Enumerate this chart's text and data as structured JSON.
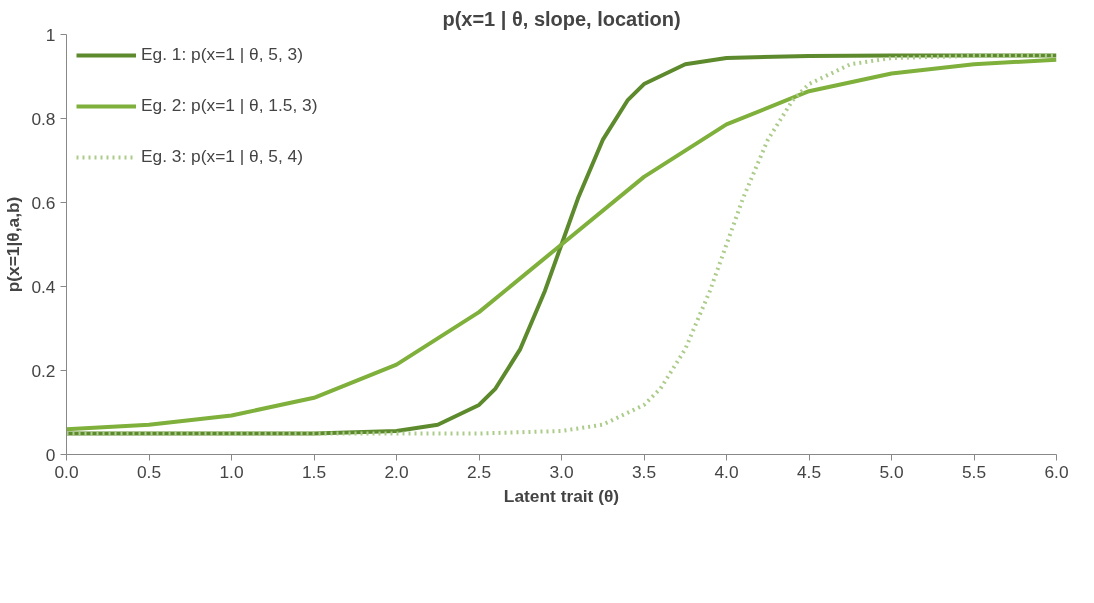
{
  "chart_data": {
    "type": "line",
    "title": "p(x=1 | θ, slope, location)",
    "xlabel": "Latent trait (θ)",
    "ylabel": "p(x=1|θ,a,b)",
    "xlim": [
      0,
      6
    ],
    "ylim": [
      0,
      1
    ],
    "xticks": [
      {
        "value": 0,
        "label": "0.0"
      },
      {
        "value": 0.5,
        "label": "0.5"
      },
      {
        "value": 1,
        "label": "1.0"
      },
      {
        "value": 1.5,
        "label": "1.5"
      },
      {
        "value": 2,
        "label": "2.0"
      },
      {
        "value": 2.5,
        "label": "2.5"
      },
      {
        "value": 3,
        "label": "3.0"
      },
      {
        "value": 3.5,
        "label": "3.5"
      },
      {
        "value": 4,
        "label": "4.0"
      },
      {
        "value": 4.5,
        "label": "4.5"
      },
      {
        "value": 5,
        "label": "5.0"
      },
      {
        "value": 5.5,
        "label": "5.5"
      },
      {
        "value": 6,
        "label": "6.0"
      }
    ],
    "yticks": [
      0,
      0.2,
      0.4,
      0.6,
      0.8,
      1
    ],
    "grid": false,
    "legend": "top left",
    "marker": "none",
    "series": [
      {
        "name": "Eg. 1: p(x=1 | θ, 5, 3)",
        "color": "#5e8a2e",
        "line_style": "solid",
        "x": [
          0,
          1,
          1.5,
          2,
          2.25,
          2.5,
          2.6,
          2.75,
          2.9,
          3,
          3.1,
          3.25,
          3.4,
          3.5,
          3.75,
          4,
          4.5,
          5,
          6
        ],
        "values": [
          0.05,
          0.05,
          0.05,
          0.056,
          0.071,
          0.118,
          0.157,
          0.251,
          0.39,
          0.5,
          0.61,
          0.749,
          0.843,
          0.882,
          0.929,
          0.944,
          0.949,
          0.95,
          0.95
        ]
      },
      {
        "name": "Eg. 2: p(x=1 | θ, 1.5, 3)",
        "color": "#7fb03c",
        "line_style": "solid",
        "x": [
          0,
          0.5,
          1,
          1.5,
          2,
          2.5,
          3,
          3.5,
          4,
          4.5,
          5,
          5.5,
          6
        ],
        "values": [
          0.06,
          0.071,
          0.093,
          0.135,
          0.214,
          0.339,
          0.5,
          0.661,
          0.786,
          0.865,
          0.907,
          0.929,
          0.94
        ]
      },
      {
        "name": "Eg. 3: p(x=1 | θ, 5, 4)",
        "color": "#adcc8c",
        "line_style": "dotted",
        "x": [
          0,
          1,
          2,
          2.5,
          3,
          3.25,
          3.5,
          3.6,
          3.75,
          3.9,
          4,
          4.1,
          4.25,
          4.4,
          4.5,
          4.75,
          5,
          5.5,
          6
        ],
        "values": [
          0.05,
          0.05,
          0.05,
          0.05,
          0.056,
          0.071,
          0.118,
          0.157,
          0.251,
          0.39,
          0.5,
          0.61,
          0.749,
          0.843,
          0.882,
          0.929,
          0.944,
          0.949,
          0.95
        ]
      }
    ]
  }
}
